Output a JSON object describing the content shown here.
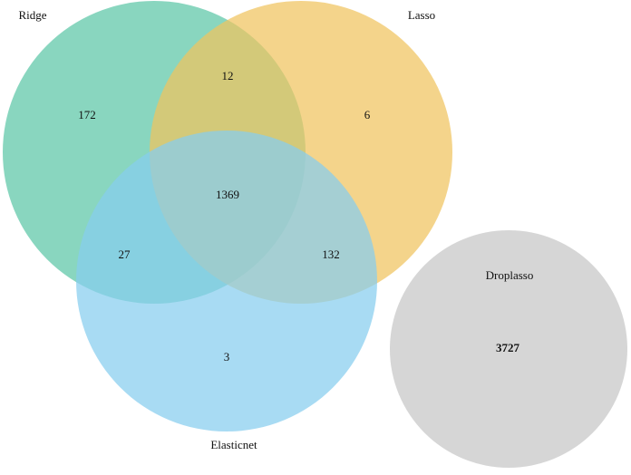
{
  "chart_data": {
    "type": "venn",
    "sets": [
      {
        "name": "Ridge",
        "color": "#5cc6a6"
      },
      {
        "name": "Lasso",
        "color": "#f0c45e"
      },
      {
        "name": "Elasticnet",
        "color": "#86cdef"
      },
      {
        "name": "Droplasso",
        "color": "#d2d2d2"
      }
    ],
    "regions": [
      {
        "sets": [
          0
        ],
        "value": 172
      },
      {
        "sets": [
          0,
          1
        ],
        "value": 12
      },
      {
        "sets": [
          1
        ],
        "value": 6
      },
      {
        "sets": [
          0,
          1,
          2
        ],
        "value": 1369
      },
      {
        "sets": [
          0,
          2
        ],
        "value": 27
      },
      {
        "sets": [
          1,
          2
        ],
        "value": 132
      },
      {
        "sets": [
          2
        ],
        "value": 3
      },
      {
        "sets": [
          3
        ],
        "value": 3727
      }
    ]
  }
}
